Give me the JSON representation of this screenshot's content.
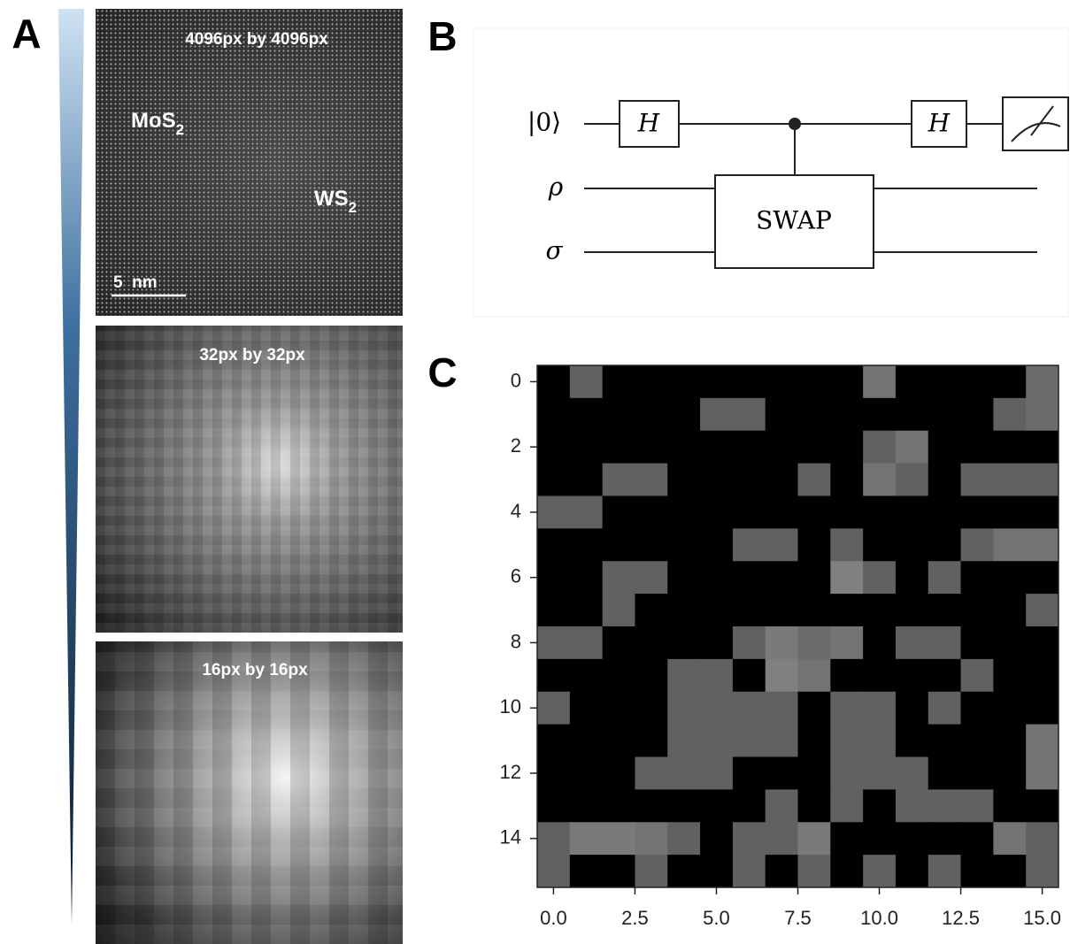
{
  "panels": {
    "a": "A",
    "b": "B",
    "c": "C"
  },
  "panel_a": {
    "image_1": {
      "caption": "4096px by 4096px",
      "label_1": {
        "text": "MoS",
        "sub": "2"
      },
      "label_2": {
        "text": "WS",
        "sub": "2"
      },
      "scale_bar": "5  nm"
    },
    "image_2": {
      "caption": "32px by 32px"
    },
    "image_3": {
      "caption": "16px by 16px"
    }
  },
  "panel_b": {
    "wire_labels": [
      "|0⟩",
      "ρ",
      "σ"
    ],
    "gates": [
      "H",
      "SWAP",
      "H"
    ]
  },
  "chart_data": {
    "type": "heatmap",
    "colormap": "gray",
    "xlim": [
      -0.5,
      15.5
    ],
    "ylim": [
      15.5,
      -0.5
    ],
    "xticks": [
      {
        "value": 0,
        "label": "0.0"
      },
      2.5,
      {
        "value": 5,
        "label": "5.0"
      },
      7.5,
      {
        "value": 10,
        "label": "10.0"
      },
      12.5,
      {
        "value": 15,
        "label": "15.0"
      }
    ],
    "yticks": [
      0,
      2,
      4,
      6,
      8,
      10,
      12,
      14
    ],
    "matrix": [
      [
        0,
        0.38,
        0,
        0,
        0,
        0,
        0,
        0,
        0,
        0,
        0.45,
        0,
        0,
        0,
        0,
        0.42
      ],
      [
        0,
        0,
        0,
        0,
        0,
        0.38,
        0.38,
        0,
        0,
        0,
        0,
        0,
        0,
        0,
        0.38,
        0.42
      ],
      [
        0,
        0,
        0,
        0,
        0,
        0,
        0,
        0,
        0,
        0,
        0.38,
        0.45,
        0,
        0,
        0,
        0
      ],
      [
        0,
        0,
        0.38,
        0.38,
        0,
        0,
        0,
        0,
        0.38,
        0,
        0.45,
        0.38,
        0,
        0.38,
        0.38,
        0.38
      ],
      [
        0.38,
        0.38,
        0,
        0,
        0,
        0,
        0,
        0,
        0,
        0,
        0,
        0,
        0,
        0,
        0,
        0
      ],
      [
        0,
        0,
        0,
        0,
        0,
        0,
        0.38,
        0.38,
        0,
        0.38,
        0,
        0,
        0,
        0.38,
        0.45,
        0.45
      ],
      [
        0,
        0,
        0.38,
        0.38,
        0,
        0,
        0,
        0,
        0,
        0.5,
        0.38,
        0,
        0.38,
        0,
        0,
        0
      ],
      [
        0,
        0,
        0.38,
        0,
        0,
        0,
        0,
        0,
        0,
        0,
        0,
        0,
        0,
        0,
        0,
        0.38
      ],
      [
        0.38,
        0.38,
        0,
        0,
        0,
        0,
        0.38,
        0.48,
        0.42,
        0.45,
        0,
        0.38,
        0.38,
        0,
        0,
        0
      ],
      [
        0,
        0,
        0,
        0,
        0.38,
        0.38,
        0,
        0.5,
        0.45,
        0,
        0,
        0,
        0,
        0.38,
        0,
        0
      ],
      [
        0.38,
        0,
        0,
        0,
        0.38,
        0.38,
        0.38,
        0.38,
        0,
        0.38,
        0.38,
        0,
        0.38,
        0,
        0,
        0
      ],
      [
        0,
        0,
        0,
        0,
        0.38,
        0.38,
        0.38,
        0.38,
        0,
        0.38,
        0.38,
        0,
        0,
        0,
        0,
        0.45
      ],
      [
        0,
        0,
        0,
        0.38,
        0.38,
        0.38,
        0,
        0,
        0,
        0.38,
        0.38,
        0.38,
        0,
        0,
        0,
        0.45
      ],
      [
        0,
        0,
        0,
        0,
        0,
        0,
        0,
        0.38,
        0,
        0.38,
        0,
        0.38,
        0.38,
        0.38,
        0,
        0
      ],
      [
        0.38,
        0.48,
        0.48,
        0.45,
        0.38,
        0,
        0.38,
        0.38,
        0.48,
        0,
        0,
        0,
        0,
        0,
        0.45,
        0.38
      ],
      [
        0.38,
        0,
        0,
        0.38,
        0,
        0,
        0.38,
        0,
        0.38,
        0,
        0.38,
        0,
        0.38,
        0,
        0,
        0.38
      ]
    ]
  }
}
